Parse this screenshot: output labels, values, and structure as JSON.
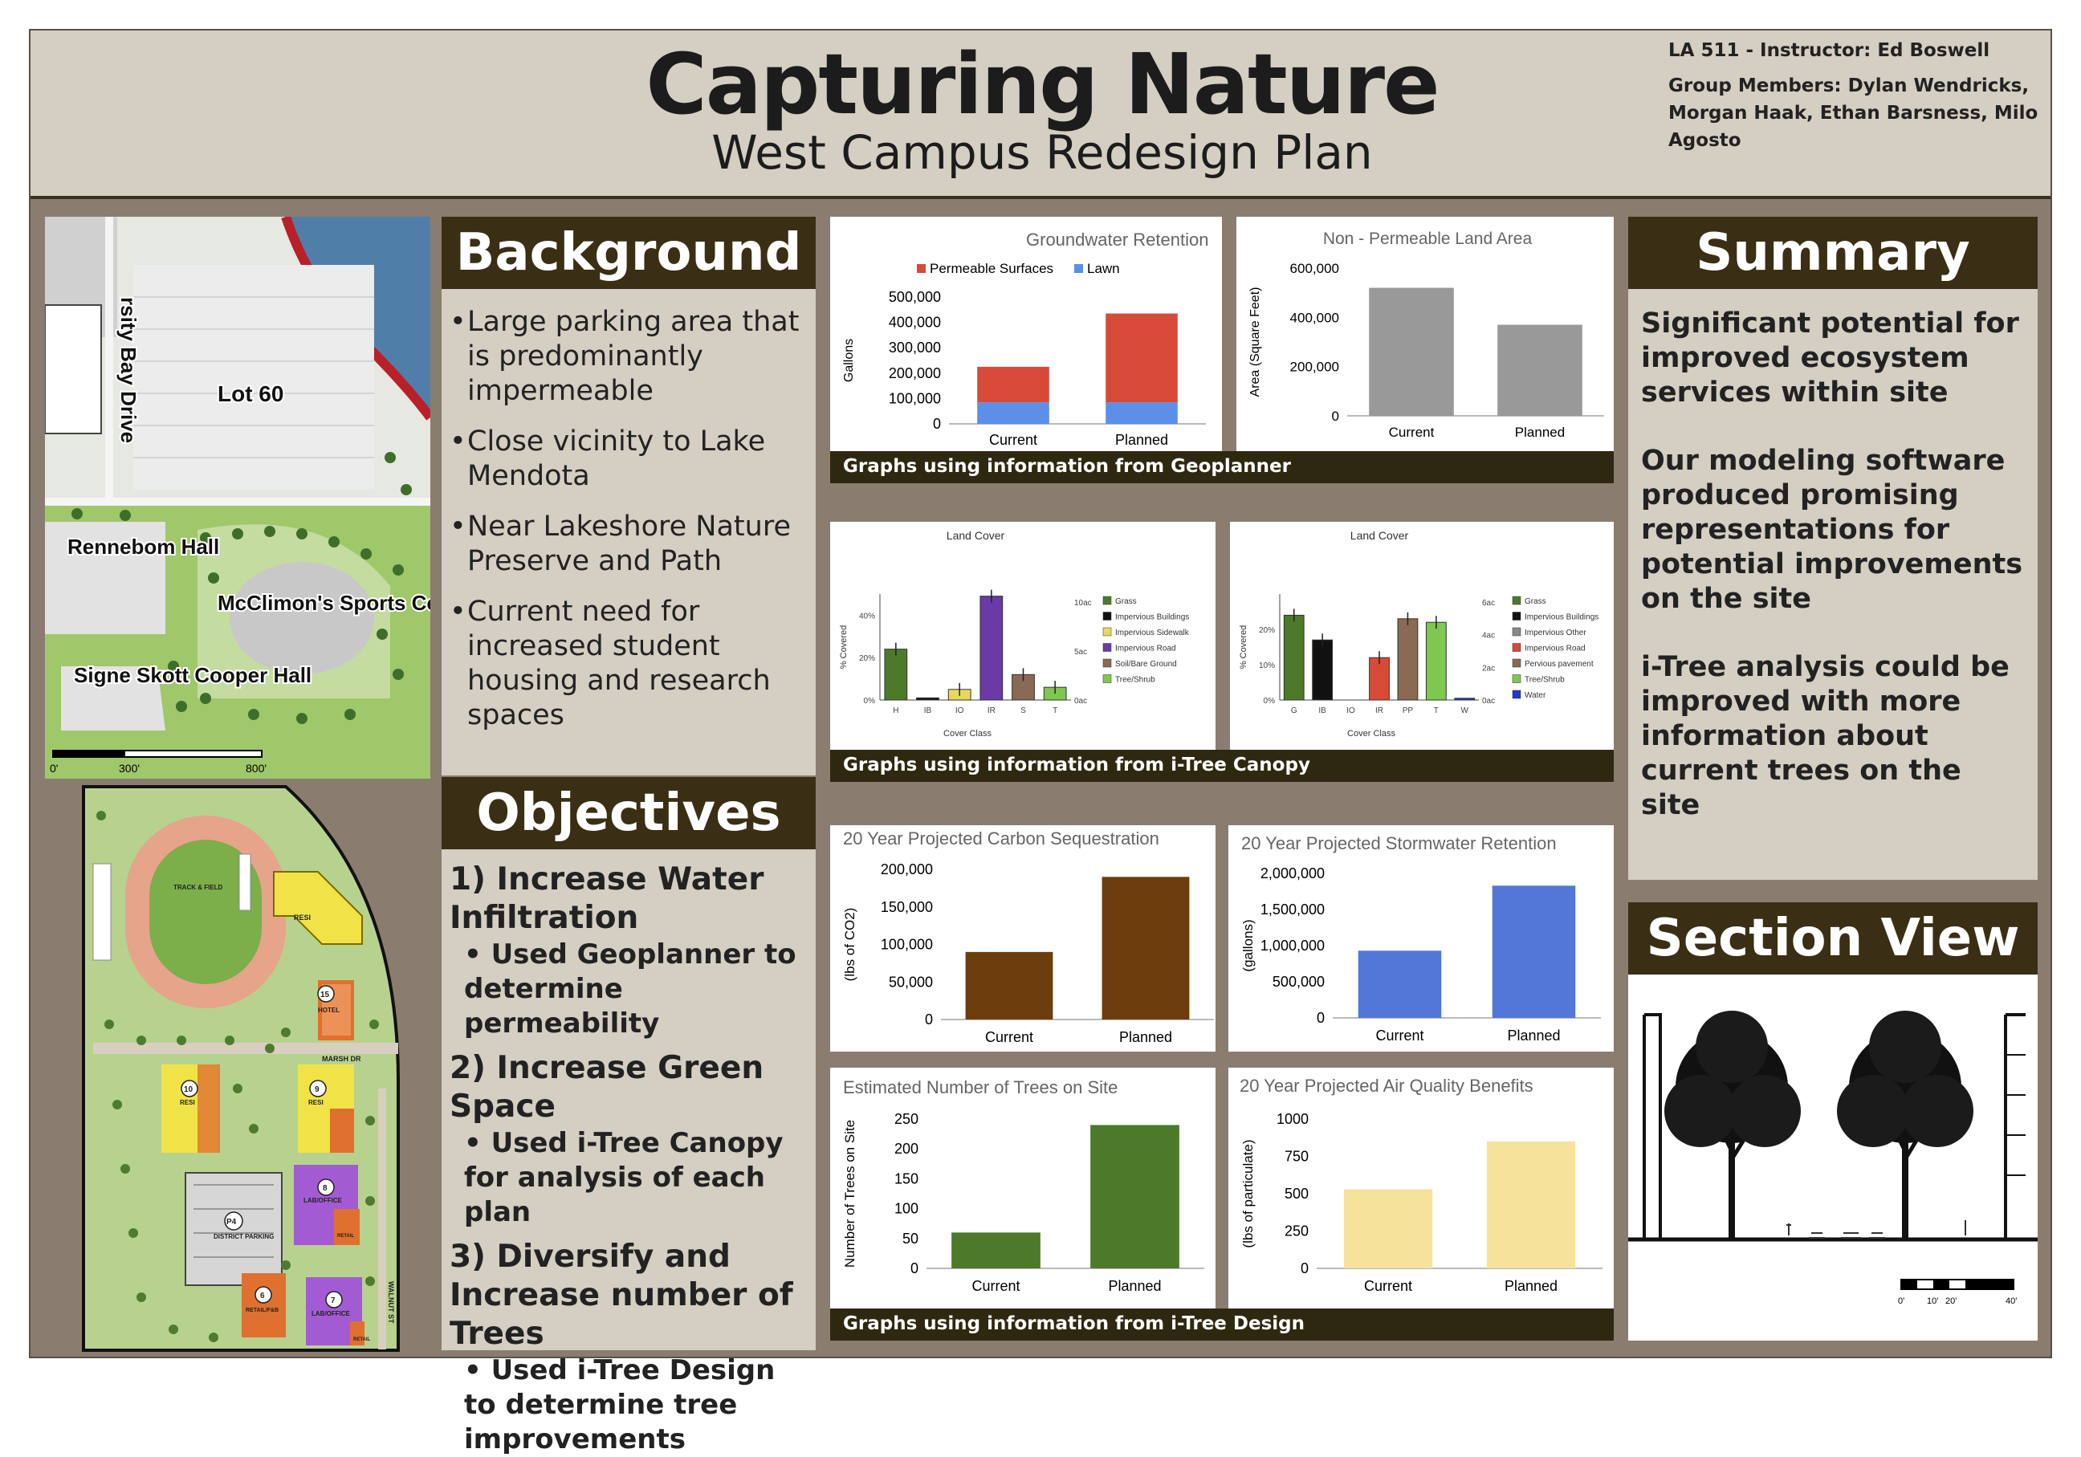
{
  "header": {
    "title": "Capturing Nature",
    "subtitle": "West Campus Redesign Plan",
    "course": "LA 511 - Instructor: Ed Boswell",
    "members": "Group Members: Dylan Wendricks, Morgan Haak, Ethan Barsness, Milo Agosto"
  },
  "site_map": {
    "labels": {
      "street": "rsity Bay Drive",
      "lot": "Lot 60",
      "rennebohm": "Rennebom Hall",
      "mcclimon": "McClimon's Sports Complex",
      "cooper": "Signe Skott Cooper Hall"
    },
    "scale": [
      "0'",
      "300'",
      "800'"
    ]
  },
  "plan_map": {
    "labels": {
      "track": "TRACK & FIELD",
      "resi": "RESI",
      "hotel_num": "15",
      "hotel": "HOTEL",
      "marsh": "MARSH DR",
      "b10": "10",
      "b9": "9",
      "p4": "P4",
      "district_parking": "DISTRICT PARKING",
      "b8": "8",
      "lab_office": "LAB/OFFICE",
      "retail": "RETAIL",
      "b6": "6",
      "retail_fb": "RETAIL/F&B",
      "b7": "7",
      "walnut": "WALNUT ST"
    }
  },
  "background": {
    "heading": "Background",
    "items": [
      "Large parking area that is predominantly impermeable",
      "Close vicinity to Lake Mendota",
      "Near Lakeshore Nature Preserve and Path",
      "Current need for increased student housing and research spaces"
    ]
  },
  "objectives": {
    "heading": "Objectives",
    "items": [
      {
        "title": "1) Increase Water Infiltration",
        "detail": "• Used Geoplanner to determine permeability"
      },
      {
        "title": "2) Increase Green Space",
        "detail": "• Used i-Tree Canopy for analysis of each plan"
      },
      {
        "title": "3) Diversify and Increase number of Trees",
        "detail": "• Used i-Tree Design to determine tree improvements"
      }
    ]
  },
  "captions": {
    "geoplanner": "Graphs using information from Geoplanner",
    "canopy": "Graphs using information from i-Tree Canopy",
    "design": "Graphs using information from i-Tree Design"
  },
  "summary": {
    "heading": "Summary",
    "paragraphs": [
      "Significant potential for improved ecosystem services within site",
      "Our modeling software produced promising representations for potential improvements on the site",
      "i-Tree analysis could be improved with more information about current trees on the site"
    ]
  },
  "section_view": {
    "heading": "Section View",
    "scale": [
      "0'",
      "10'",
      "20'",
      "40'"
    ]
  },
  "colors": {
    "permeable": "#d84a38",
    "lawn": "#5b8fe8",
    "gray_bar": "#999999",
    "carbon": "#6b3d0c",
    "stormwater": "#5277d8",
    "trees": "#4d7a2a",
    "air": "#f7e29c",
    "header_dark": "#3a2f14"
  },
  "chart_data": [
    {
      "id": "groundwater",
      "type": "bar",
      "stacked": true,
      "title": "Groundwater Retention",
      "ylabel": "Gallons",
      "categories": [
        "Current",
        "Planned"
      ],
      "series": [
        {
          "name": "Permeable Surfaces",
          "values": [
            140000,
            350000
          ],
          "color": "#d84a38"
        },
        {
          "name": "Lawn",
          "values": [
            85000,
            85000
          ],
          "color": "#5b8fe8"
        }
      ],
      "ylim": [
        0,
        500000
      ],
      "yticks": [
        0,
        100000,
        200000,
        300000,
        400000,
        500000
      ],
      "ytick_labels": [
        "0",
        "100,000",
        "200,000",
        "300,000",
        "400,000",
        "500,000"
      ]
    },
    {
      "id": "nonpermeable",
      "type": "bar",
      "title": "Non - Permeable Land Area",
      "ylabel": "Area (Square Feet)",
      "categories": [
        "Current",
        "Planned"
      ],
      "values": [
        520000,
        370000
      ],
      "color": "#999999",
      "ylim": [
        0,
        600000
      ],
      "yticks": [
        0,
        200000,
        400000,
        600000
      ],
      "ytick_labels": [
        "0",
        "200,000",
        "400,000",
        "600,000"
      ]
    },
    {
      "id": "landcover_current",
      "type": "bar",
      "title": "Land Cover",
      "xlabel": "Cover Class",
      "ylabel": "% Covered",
      "categories": [
        "H",
        "IB",
        "IO",
        "IR",
        "S",
        "T"
      ],
      "values": [
        24,
        1,
        5,
        49,
        12,
        6
      ],
      "colors": [
        "#4d7a2a",
        "#111111",
        "#e8d85a",
        "#6a3aa8",
        "#8a6a55",
        "#7ec850"
      ],
      "ylim": [
        0,
        50
      ],
      "yticks": [
        0,
        20,
        40
      ],
      "ytick_labels": [
        "0%",
        "20%",
        "40%"
      ],
      "y2ticks": [
        "0ac",
        "5ac",
        "10ac"
      ],
      "legend": [
        "Grass",
        "Impervious Buildings",
        "Impervious Sidewalk",
        "Impervious Road",
        "Soil/Bare Ground",
        "Tree/Shrub"
      ]
    },
    {
      "id": "landcover_planned",
      "type": "bar",
      "title": "Land Cover",
      "xlabel": "Cover Class",
      "ylabel": "% Covered",
      "categories": [
        "G",
        "IB",
        "IO",
        "IR",
        "PP",
        "T",
        "W"
      ],
      "values": [
        24,
        17,
        0,
        12,
        23,
        22,
        0.5
      ],
      "colors": [
        "#4d7a2a",
        "#111111",
        "#888888",
        "#d84a38",
        "#8a6a55",
        "#7ec850",
        "#1a3ad0"
      ],
      "ylim": [
        0,
        30
      ],
      "yticks": [
        0,
        10,
        20
      ],
      "ytick_labels": [
        "0%",
        "10%",
        "20%"
      ],
      "y2ticks": [
        "0ac",
        "2ac",
        "4ac",
        "6ac"
      ],
      "legend": [
        "Grass",
        "Impervious Buildings",
        "Impervious Other",
        "Impervious Road",
        "Pervious pavement",
        "Tree/Shrub",
        "Water"
      ]
    },
    {
      "id": "carbon",
      "type": "bar",
      "title": "20 Year Projected Carbon Sequestration",
      "ylabel": "(lbs of CO2)",
      "categories": [
        "Current",
        "Planned"
      ],
      "values": [
        90000,
        190000
      ],
      "color": "#6b3d0c",
      "ylim": [
        0,
        200000
      ],
      "yticks": [
        0,
        50000,
        100000,
        150000,
        200000
      ],
      "ytick_labels": [
        "0",
        "50,000",
        "100,000",
        "150,000",
        "200,000"
      ]
    },
    {
      "id": "stormwater",
      "type": "bar",
      "title": "20 Year Projected Stormwater Retention",
      "ylabel": "(gallons)",
      "categories": [
        "Current",
        "Planned"
      ],
      "values": [
        930000,
        1830000
      ],
      "color": "#5277d8",
      "ylim": [
        0,
        2000000
      ],
      "yticks": [
        0,
        500000,
        1000000,
        1500000,
        2000000
      ],
      "ytick_labels": [
        "0",
        "500,000",
        "1,000,000",
        "1,500,000",
        "2,000,000"
      ]
    },
    {
      "id": "trees",
      "type": "bar",
      "title": "Estimated Number of Trees on Site",
      "ylabel": "Number of Trees on Site",
      "categories": [
        "Current",
        "Planned"
      ],
      "values": [
        60,
        240
      ],
      "color": "#4d7a2a",
      "ylim": [
        0,
        250
      ],
      "yticks": [
        0,
        50,
        100,
        150,
        200,
        250
      ],
      "ytick_labels": [
        "0",
        "50",
        "100",
        "150",
        "200",
        "250"
      ]
    },
    {
      "id": "air",
      "type": "bar",
      "title": "20 Year Projected Air Quality Benefits",
      "ylabel": "(lbs of particulate)",
      "categories": [
        "Current",
        "Planned"
      ],
      "values": [
        530,
        850
      ],
      "color": "#f7e29c",
      "ylim": [
        0,
        1000
      ],
      "yticks": [
        0,
        250,
        500,
        750,
        1000
      ],
      "ytick_labels": [
        "0",
        "250",
        "500",
        "750",
        "1000"
      ]
    }
  ]
}
